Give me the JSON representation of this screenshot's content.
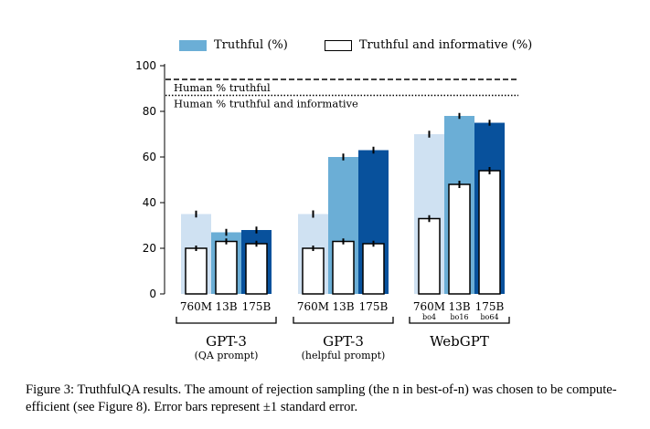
{
  "legend": {
    "truthful_label": "Truthful (%)",
    "informative_label": "Truthful and informative (%)"
  },
  "caption": {
    "text": "Figure 3: TruthfulQA results. The amount of rejection sampling (the n in best-of-n) was chosen to be compute-efficient (see Figure 8). Error bars represent ±1 standard error."
  },
  "chart_data": {
    "type": "bar",
    "title": "",
    "xlabel": "",
    "ylabel": "",
    "ylim": [
      0,
      100
    ],
    "yticks": [
      0,
      20,
      40,
      60,
      80,
      100
    ],
    "reference_lines": [
      {
        "label": "Human % truthful",
        "value": 94,
        "style": "dashed"
      },
      {
        "label": "Human % truthful and informative",
        "value": 87,
        "style": "dotted"
      }
    ],
    "groups": [
      {
        "name": "GPT-3",
        "subtitle": "(QA prompt)",
        "bars": [
          {
            "label": "760M",
            "sublabel": "",
            "truthful": 35,
            "truthful_err": 1.5,
            "informative": 20,
            "informative_err": 1.2,
            "color": "#cfe1f2"
          },
          {
            "label": "13B",
            "sublabel": "",
            "truthful": 27,
            "truthful_err": 1.5,
            "informative": 23,
            "informative_err": 1.3,
            "color": "#6baed6"
          },
          {
            "label": "175B",
            "sublabel": "",
            "truthful": 28,
            "truthful_err": 1.5,
            "informative": 22,
            "informative_err": 1.3,
            "color": "#08519c"
          }
        ]
      },
      {
        "name": "GPT-3",
        "subtitle": "(helpful prompt)",
        "bars": [
          {
            "label": "760M",
            "sublabel": "",
            "truthful": 35,
            "truthful_err": 1.6,
            "informative": 20,
            "informative_err": 1.2,
            "color": "#cfe1f2"
          },
          {
            "label": "13B",
            "sublabel": "",
            "truthful": 60,
            "truthful_err": 1.5,
            "informative": 23,
            "informative_err": 1.3,
            "color": "#6baed6"
          },
          {
            "label": "175B",
            "sublabel": "",
            "truthful": 63,
            "truthful_err": 1.5,
            "informative": 22,
            "informative_err": 1.3,
            "color": "#08519c"
          }
        ]
      },
      {
        "name": "WebGPT",
        "subtitle": "",
        "bars": [
          {
            "label": "760M",
            "sublabel": "bo4",
            "truthful": 70,
            "truthful_err": 1.5,
            "informative": 33,
            "informative_err": 1.5,
            "color": "#cfe1f2"
          },
          {
            "label": "13B",
            "sublabel": "bo16",
            "truthful": 78,
            "truthful_err": 1.3,
            "informative": 48,
            "informative_err": 1.6,
            "color": "#6baed6"
          },
          {
            "label": "175B",
            "sublabel": "bo64",
            "truthful": 75,
            "truthful_err": 1.3,
            "informative": 54,
            "informative_err": 1.6,
            "color": "#08519c"
          }
        ]
      }
    ]
  }
}
